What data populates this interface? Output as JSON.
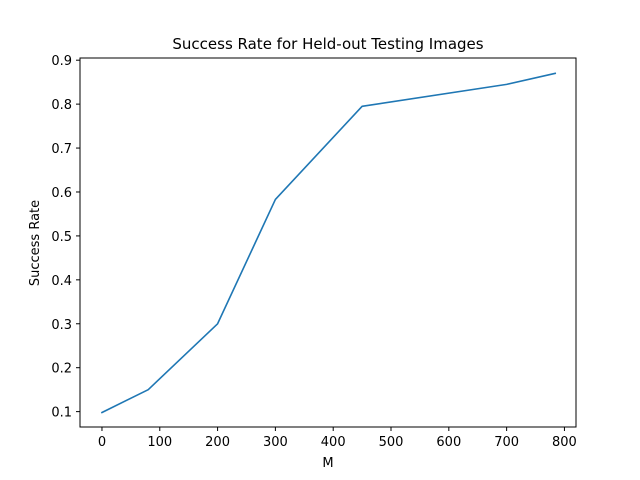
{
  "chart_data": {
    "type": "line",
    "title": "Success Rate for Held-out Testing Images",
    "xlabel": "M",
    "ylabel": "Success Rate",
    "xlim": [
      -38,
      820
    ],
    "ylim": [
      0.065,
      0.905
    ],
    "xticks": [
      0,
      100,
      200,
      300,
      400,
      500,
      600,
      700,
      800
    ],
    "xtick_labels": [
      "0",
      "100",
      "200",
      "300",
      "400",
      "500",
      "600",
      "700",
      "800"
    ],
    "yticks": [
      0.1,
      0.2,
      0.3,
      0.4,
      0.5,
      0.6,
      0.7,
      0.8,
      0.9
    ],
    "ytick_labels": [
      "0.1",
      "0.2",
      "0.3",
      "0.4",
      "0.5",
      "0.6",
      "0.7",
      "0.8",
      "0.9"
    ],
    "grid": false,
    "series": [
      {
        "color": "#1f77b4",
        "x": [
          0,
          80,
          200,
          300,
          450,
          700,
          784
        ],
        "y": [
          0.098,
          0.15,
          0.3,
          0.583,
          0.795,
          0.845,
          0.87
        ]
      }
    ]
  }
}
